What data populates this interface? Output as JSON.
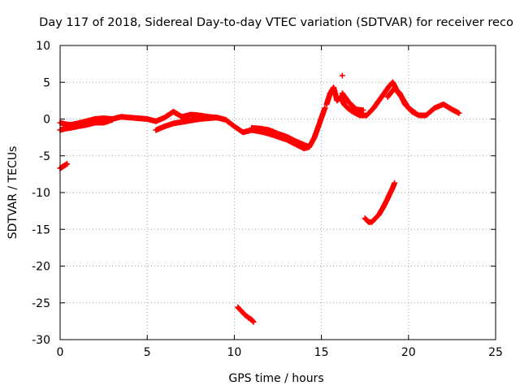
{
  "chart_data": {
    "type": "scatter",
    "title": "Day 117 of 2018, Sidereal Day-to-day VTEC variation (SDTVAR) for receiver reco",
    "xlabel": "GPS time / hours",
    "ylabel": "SDTVAR / TECUs",
    "xlim": [
      0,
      25
    ],
    "ylim": [
      -30,
      10
    ],
    "xticks": [
      0,
      5,
      10,
      15,
      20,
      25
    ],
    "yticks": [
      -30,
      -25,
      -20,
      -15,
      -10,
      -5,
      0,
      5,
      10
    ],
    "xtick_labels": [
      "0",
      "5",
      "10",
      "15",
      "20",
      "25"
    ],
    "ytick_labels": [
      "-30",
      "-25",
      "-20",
      "-15",
      "-10",
      "-5",
      "0",
      "5",
      "10"
    ],
    "grid": true,
    "legend": "none",
    "marker": "+",
    "series": [
      {
        "name": "SDTVAR",
        "color": "#ff0000",
        "segments": [
          {
            "x": [
              0.0,
              0.3,
              0.6,
              1.0,
              1.5,
              2.0,
              2.5,
              3.0,
              3.5,
              4.0,
              4.5,
              5.0,
              5.5,
              6.0,
              6.5,
              7.0,
              7.5,
              8.0,
              8.5,
              9.0,
              9.5,
              10.0,
              10.5,
              11.0,
              11.5,
              12.0,
              12.5,
              13.0,
              13.5,
              14.0,
              14.3,
              14.6,
              14.9,
              15.2
            ],
            "y": [
              -0.5,
              -0.7,
              -0.8,
              -0.6,
              -0.3,
              0.0,
              0.1,
              0.0,
              0.3,
              0.2,
              0.1,
              0.0,
              -0.3,
              0.2,
              1.0,
              0.3,
              0.6,
              0.5,
              0.3,
              0.2,
              -0.1,
              -1.0,
              -1.8,
              -1.5,
              -1.7,
              -2.0,
              -2.4,
              -2.8,
              -3.4,
              -4.0,
              -3.8,
              -2.5,
              -0.5,
              1.5
            ]
          },
          {
            "x": [
              0.0,
              0.3,
              0.6,
              1.0,
              1.5,
              2.0,
              2.5,
              3.0
            ],
            "y": [
              -1.5,
              -1.3,
              -1.2,
              -1.0,
              -0.8,
              -0.5,
              -0.5,
              -0.1
            ]
          },
          {
            "x": [
              5.5,
              6.0,
              6.5,
              7.0,
              7.5,
              8.0,
              8.5,
              9.0
            ],
            "y": [
              -1.5,
              -1.0,
              -0.6,
              -0.4,
              -0.2,
              0.0,
              0.1,
              0.2
            ]
          },
          {
            "x": [
              11.0,
              11.5,
              12.0,
              12.5,
              13.0,
              13.5,
              14.0,
              14.3
            ],
            "y": [
              -1.2,
              -1.3,
              -1.5,
              -2.0,
              -2.4,
              -3.0,
              -3.5,
              -3.8
            ]
          },
          {
            "x": [
              15.3,
              15.5,
              15.7,
              15.9,
              16.1,
              16.3,
              16.5,
              16.8,
              17.2,
              17.6,
              18.0,
              18.3,
              18.6,
              18.9,
              19.1,
              19.3,
              19.5,
              19.8,
              20.2,
              20.6,
              21.0,
              21.5,
              22.0,
              22.5,
              22.9
            ],
            "y": [
              2.0,
              3.5,
              4.3,
              2.5,
              3.0,
              2.0,
              1.5,
              1.0,
              0.5,
              0.5,
              1.5,
              2.5,
              3.5,
              4.5,
              5.0,
              4.0,
              3.5,
              2.0,
              1.0,
              0.5,
              0.5,
              1.5,
              2.0,
              1.3,
              0.8
            ]
          },
          {
            "x": [
              16.2,
              16.6,
              17.0,
              17.4
            ],
            "y": [
              3.5,
              2.2,
              1.3,
              1.2
            ]
          },
          {
            "x": [
              18.8,
              19.2,
              19.6,
              20.0,
              20.4
            ],
            "y": [
              3.0,
              4.2,
              3.0,
              1.5,
              0.8
            ]
          },
          {
            "x": [
              16.2
            ],
            "y": [
              5.9
            ]
          },
          {
            "x": [
              0.0,
              0.2,
              0.4
            ],
            "y": [
              -6.7,
              -6.4,
              -6.1
            ]
          },
          {
            "x": [
              17.5,
              17.7,
              17.9,
              18.1,
              18.3,
              18.5,
              18.7,
              18.9,
              19.1,
              19.2
            ],
            "y": [
              -13.5,
              -14.0,
              -14.0,
              -13.5,
              -13.0,
              -12.2,
              -11.3,
              -10.3,
              -9.3,
              -8.7
            ]
          },
          {
            "x": [
              10.2,
              10.4,
              10.6,
              10.8,
              11.0,
              11.1
            ],
            "y": [
              -25.6,
              -26.1,
              -26.6,
              -27.0,
              -27.3,
              -27.6
            ]
          }
        ]
      }
    ]
  }
}
